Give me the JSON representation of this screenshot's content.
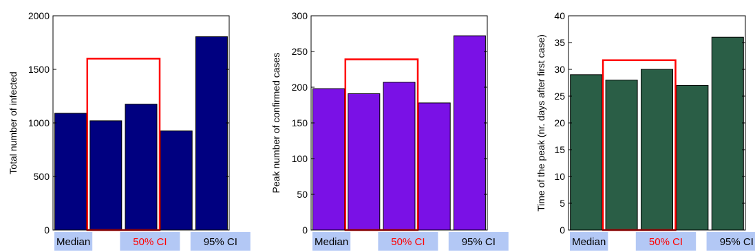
{
  "chart_data": [
    {
      "type": "bar",
      "ylabel": "Total number of infected",
      "ylim": [
        0,
        2000
      ],
      "yticks": [
        0,
        500,
        1000,
        1500,
        2000
      ],
      "values": [
        1090,
        1020,
        1175,
        925,
        1805
      ],
      "bar_color": "#000080",
      "groups": [
        {
          "label": "Median",
          "highlight": false
        },
        {
          "label": "50% CI",
          "highlight": true
        },
        {
          "label": "95% CI",
          "highlight": false
        }
      ],
      "highlight_box": {
        "top": 1600
      },
      "grid": false
    },
    {
      "type": "bar",
      "ylabel": "Peak number of confirmed cases",
      "ylim": [
        0,
        300
      ],
      "yticks": [
        0,
        50,
        100,
        150,
        200,
        250,
        300
      ],
      "values": [
        198,
        191,
        207,
        178,
        272
      ],
      "bar_color": "#7a11e6",
      "groups": [
        {
          "label": "Median",
          "highlight": false
        },
        {
          "label": "50% CI",
          "highlight": true
        },
        {
          "label": "95% CI",
          "highlight": false
        }
      ],
      "highlight_box": {
        "top": 239
      },
      "grid": false
    },
    {
      "type": "bar",
      "ylabel": "Time of the peak (nr. days after first case)",
      "ylim": [
        0,
        40
      ],
      "yticks": [
        0,
        5,
        10,
        15,
        20,
        25,
        30,
        35,
        40
      ],
      "values": [
        29,
        28,
        30,
        27,
        36
      ],
      "bar_color": "#2a5e46",
      "groups": [
        {
          "label": "Median",
          "highlight": false
        },
        {
          "label": "50% CI",
          "highlight": true
        },
        {
          "label": "95% CI",
          "highlight": false
        }
      ],
      "highlight_box": {
        "top": 31.7
      },
      "grid": false
    }
  ],
  "colors": {
    "label_background": "#b3c8f5",
    "highlight": "#ff0000",
    "text": "#000000"
  }
}
